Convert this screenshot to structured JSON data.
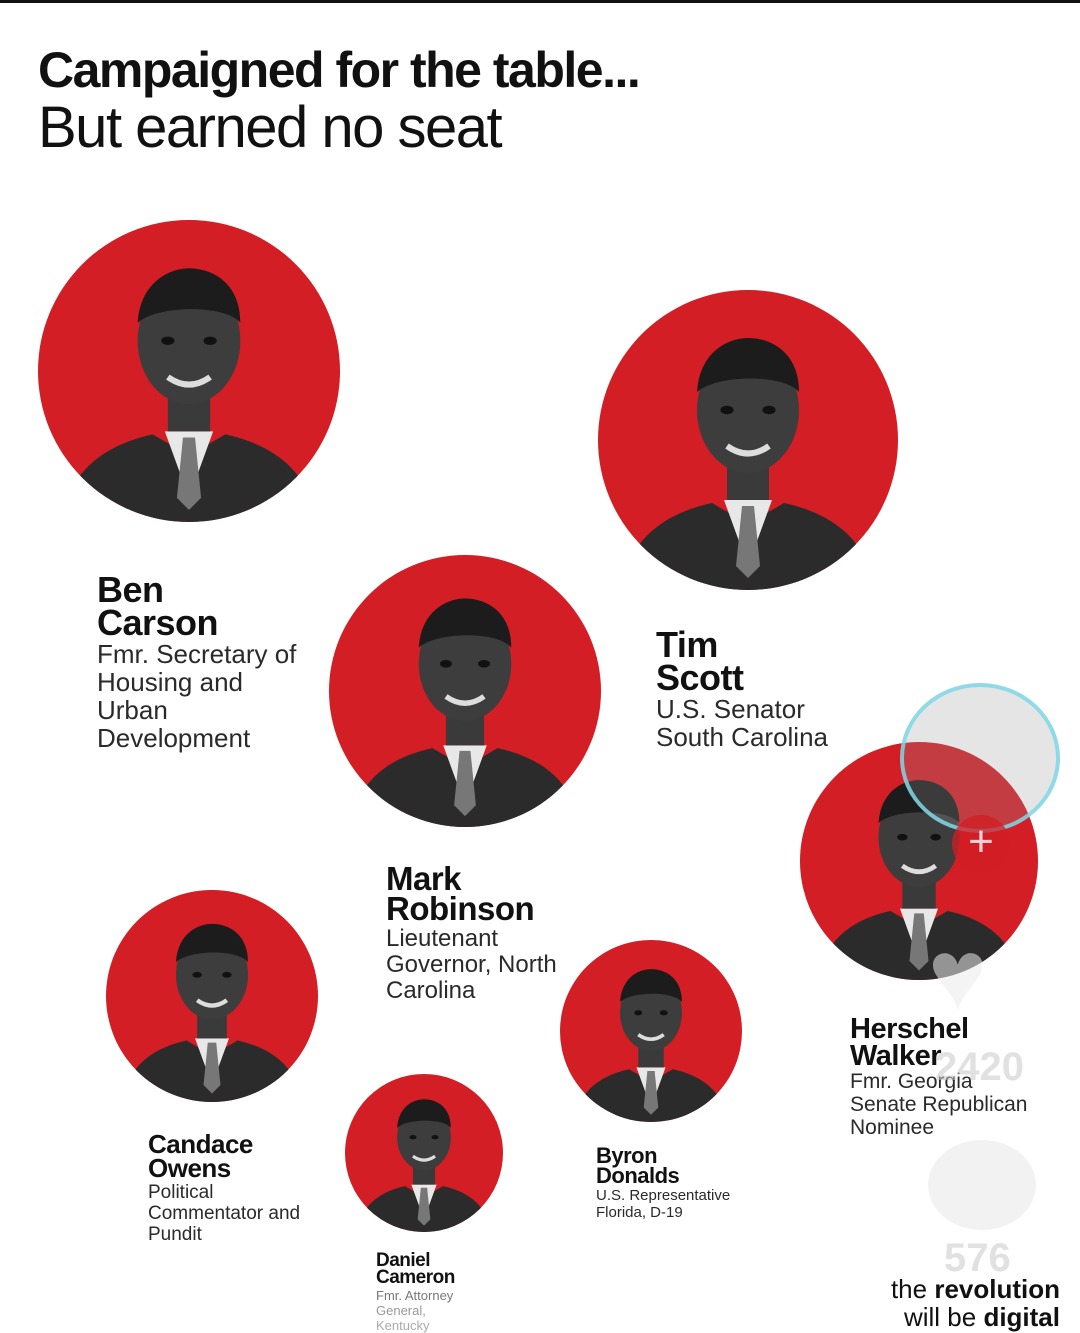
{
  "header": {
    "title": "Campaigned for the table...",
    "subtitle": "But earned no seat"
  },
  "people": [
    {
      "name_line1": "Ben",
      "name_line2": "Carson",
      "role": [
        "Fmr. Secretary of",
        "Housing and",
        "Urban",
        "Development"
      ]
    },
    {
      "name_line1": "Tim",
      "name_line2": "Scott",
      "role": [
        "U.S. Senator",
        "South Carolina"
      ]
    },
    {
      "name_line1": "Mark",
      "name_line2": "Robinson",
      "role": [
        "Lieutenant",
        "Governor, North",
        "Carolina"
      ]
    },
    {
      "name_line1": "Herschel",
      "name_line2": "Walker",
      "role": [
        "Fmr. Georgia",
        "Senate Republican",
        "Nominee"
      ]
    },
    {
      "name_line1": "Candace",
      "name_line2": "Owens",
      "role": [
        "Political",
        "Commentator and",
        "Pundit"
      ]
    },
    {
      "name_line1": "Byron",
      "name_line2": "Donalds",
      "role": [
        "U.S. Representative",
        "Florida, D-19"
      ]
    },
    {
      "name_line1": "Daniel",
      "name_line2": "Cameron",
      "role": [
        "Fmr. Attorney",
        "General,",
        "Kentucky"
      ]
    }
  ],
  "overlay": {
    "like_count": "2420",
    "comment_count": "576",
    "icons": [
      "follow-plus-icon",
      "heart-icon",
      "comment-icon"
    ]
  },
  "brand": {
    "line1_prefix": "the ",
    "line1_bold": "revolution",
    "line2_prefix": "will be ",
    "line2_bold": "digital"
  },
  "colors": {
    "accent_red": "#d21e24",
    "text": "#111111",
    "overlay_ring": "#7fd8e8"
  }
}
